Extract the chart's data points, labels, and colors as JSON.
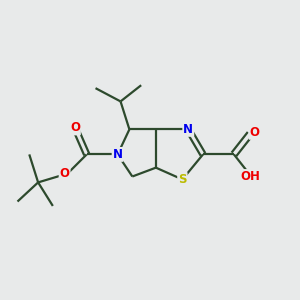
{
  "background_color": "#e8eaea",
  "bond_color": "#2d4a2d",
  "atom_colors": {
    "N": "#0000ee",
    "O": "#ee0000",
    "S": "#bbbb00",
    "C": "#2d4a2d",
    "H": "#666666"
  },
  "line_width": 1.6,
  "figsize": [
    3.0,
    3.0
  ],
  "dpi": 100
}
